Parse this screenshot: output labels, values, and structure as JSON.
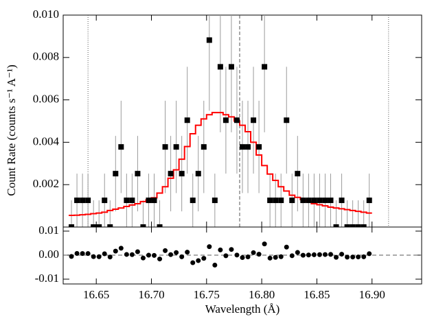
{
  "chart_data": [
    {
      "type": "spectrum",
      "ylabel": "Count Rate (counts s⁻¹ A⁻¹)",
      "xlim": [
        16.62,
        16.945
      ],
      "ylim": [
        0,
        0.01
      ],
      "yticks": [
        0.002,
        0.004,
        0.006,
        0.008,
        {
          "value": 0.01,
          "label": "0.010"
        }
      ],
      "x": [
        16.6275,
        16.6325,
        16.6375,
        16.6425,
        16.6475,
        16.6525,
        16.6575,
        16.6625,
        16.6675,
        16.6725,
        16.6775,
        16.6825,
        16.6875,
        16.6925,
        16.6975,
        16.7025,
        16.7075,
        16.7125,
        16.7175,
        16.7225,
        16.7275,
        16.7325,
        16.7375,
        16.7425,
        16.7475,
        16.7525,
        16.7575,
        16.7625,
        16.7675,
        16.7725,
        16.7775,
        16.7825,
        16.7875,
        16.7925,
        16.7975,
        16.8025,
        16.8075,
        16.8125,
        16.8175,
        16.8225,
        16.8275,
        16.8325,
        16.8375,
        16.8425,
        16.8475,
        16.8525,
        16.8575,
        16.8625,
        16.8675,
        16.8725,
        16.8775,
        16.8825,
        16.8875,
        16.8925,
        16.8975
      ],
      "values": [
        0,
        0.00126,
        0.00126,
        0.00126,
        0,
        0,
        0.00126,
        0,
        0.00252,
        0.00378,
        0.00126,
        0.00126,
        0.00252,
        0,
        0.00126,
        0.00126,
        0,
        0.00378,
        0.00252,
        0.00378,
        0.00252,
        0.00504,
        0.00126,
        0.00252,
        0.00378,
        0.00882,
        0.00126,
        0.00756,
        0.00504,
        0.00756,
        0.00504,
        0.00378,
        0.00378,
        0.00504,
        0.00378,
        0.00756,
        0.00126,
        0.00126,
        0.00126,
        0.00504,
        0.00126,
        0.00252,
        0.00126,
        0.00126,
        0.00126,
        0.00126,
        0.00126,
        0.00126,
        0,
        0.00126,
        0,
        0,
        0,
        0,
        0.00126
      ],
      "errors": [
        0.00126,
        0.00126,
        0.00126,
        0.00126,
        0.00126,
        0.00126,
        0.00126,
        0.00126,
        0.00178,
        0.00218,
        0.00126,
        0.00126,
        0.00178,
        0.00126,
        0.00126,
        0.00126,
        0.00126,
        0.00218,
        0.00178,
        0.00218,
        0.00178,
        0.00252,
        0.00126,
        0.00178,
        0.00218,
        0.00333,
        0.00126,
        0.00309,
        0.00252,
        0.00309,
        0.00252,
        0.00218,
        0.00218,
        0.00252,
        0.00218,
        0.00309,
        0.00126,
        0.00126,
        0.00126,
        0.00252,
        0.00126,
        0.00178,
        0.00126,
        0.00126,
        0.00126,
        0.00126,
        0.00126,
        0.00126,
        0.00126,
        0.00126,
        0.00126,
        0.00126,
        0.00126,
        0.00126,
        0.00126
      ],
      "color": "#000000",
      "error_color": "#9a9a9a",
      "model": {
        "color": "#ff0000",
        "values": [
          0.00055,
          0.00056,
          0.00058,
          0.0006,
          0.00063,
          0.00066,
          0.0007,
          0.00078,
          0.00084,
          0.0009,
          0.00097,
          0.00104,
          0.0011,
          0.0012,
          0.00128,
          0.00138,
          0.0016,
          0.0019,
          0.0023,
          0.0027,
          0.0032,
          0.0038,
          0.0044,
          0.0048,
          0.0051,
          0.0053,
          0.0054,
          0.0054,
          0.0053,
          0.0052,
          0.005,
          0.0048,
          0.0045,
          0.004,
          0.0034,
          0.0029,
          0.0025,
          0.0022,
          0.0019,
          0.0017,
          0.0015,
          0.0014,
          0.0013,
          0.0012,
          0.0011,
          0.00105,
          0.001,
          0.00094,
          0.0009,
          0.00086,
          0.00082,
          0.00078,
          0.00074,
          0.0007,
          0.00066
        ]
      },
      "markers": [
        {
          "x": 16.6425,
          "style": "dotted"
        },
        {
          "x": 16.78,
          "style": "dashed"
        },
        {
          "x": 16.915,
          "style": "dotted"
        }
      ]
    },
    {
      "type": "residual",
      "xlabel": "Wavelength (Å)",
      "ylim": [
        -0.012,
        0.0117
      ],
      "yticks": [
        0.01,
        {
          "value": 0,
          "label": "0.00"
        },
        -0.01
      ],
      "xticks": [
        16.65,
        {
          "value": 16.7,
          "label": "16.70"
        },
        16.75,
        {
          "value": 16.8,
          "label": "16.80"
        },
        16.85,
        {
          "value": 16.9,
          "label": "16.90"
        }
      ],
      "color": "#000000",
      "values": [
        -0.00055,
        0.0007,
        0.00068,
        0.00066,
        -0.00063,
        -0.00066,
        0.00056,
        -0.00078,
        0.00168,
        0.00288,
        0.00029,
        0.00022,
        0.00142,
        -0.0012,
        -2e-05,
        -0.00012,
        -0.0016,
        0.00188,
        0.00022,
        0.00108,
        -0.00068,
        0.00124,
        -0.00314,
        -0.00228,
        -0.00132,
        0.00352,
        -0.00414,
        0.00216,
        -0.00026,
        0.00236,
        4e-05,
        -0.00102,
        -0.00072,
        0.00104,
        0.00038,
        0.00466,
        -0.00124,
        -0.00094,
        -0.00064,
        0.00334,
        -0.00024,
        0.00112,
        -4e-05,
        6e-05,
        0.00016,
        0.00021,
        0.00026,
        0.00032,
        -0.0009,
        0.0004,
        -0.00082,
        -0.00078,
        -0.00074,
        -0.0007,
        0.0006
      ]
    }
  ]
}
